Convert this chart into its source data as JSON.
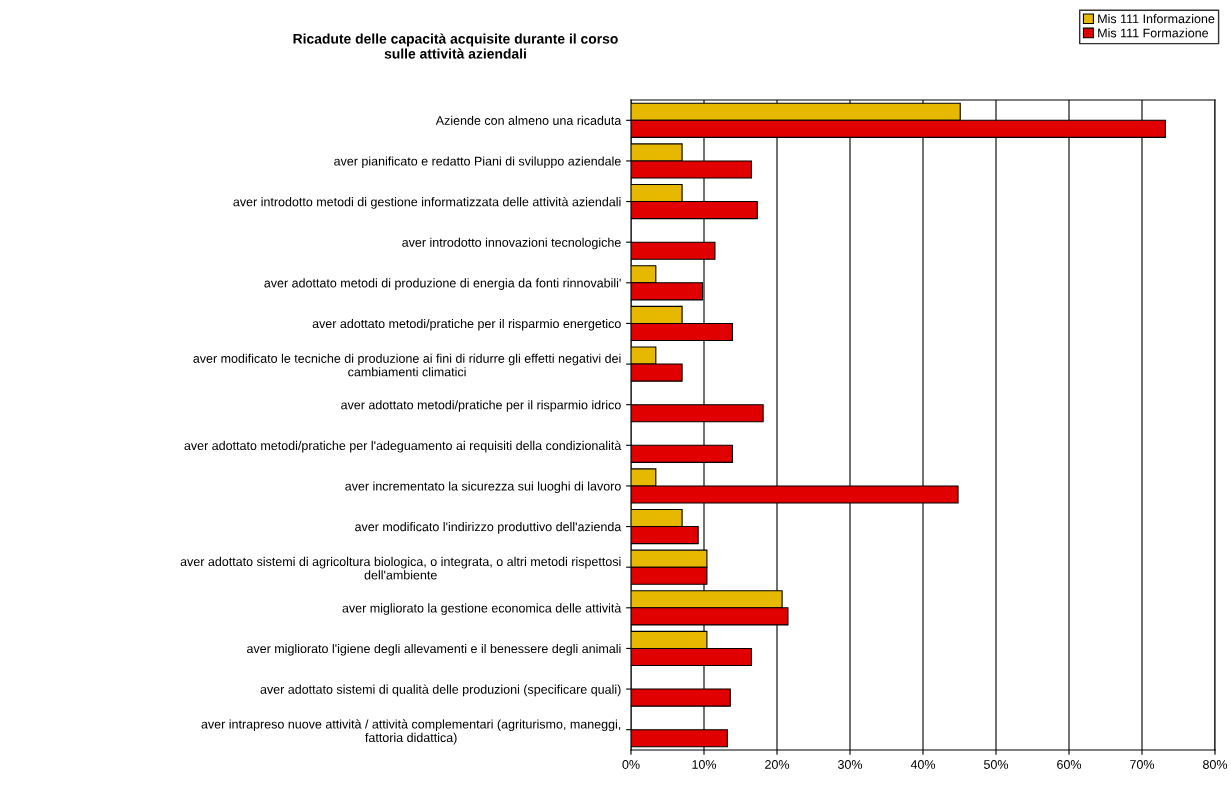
{
  "chart_data": {
    "type": "bar",
    "orientation": "horizontal",
    "title": "Ricadute delle capacità acquisite durante il corso\nsulle attività aziendali",
    "categories": [
      "Aziende con almeno una ricaduta",
      "aver pianificato e redatto Piani di sviluppo aziendale",
      "aver introdotto metodi di gestione informatizzata delle attività aziendali",
      "aver introdotto innovazioni tecnologiche",
      "aver adottato metodi di produzione di energia da fonti rinnovabili'",
      "aver adottato metodi/pratiche per il risparmio energetico",
      "aver modificato le tecniche di produzione ai fini di ridurre gli effetti negativi dei\ncambiamenti climatici",
      "aver adottato metodi/pratiche per il risparmio idrico",
      "aver adottato metodi/pratiche per l'adeguamento ai requisiti della condizionalità",
      "aver incrementato la sicurezza sui luoghi di lavoro",
      "aver modificato l'indirizzo produttivo dell'azienda",
      "aver adottato sistemi di agricoltura biologica, o integrata, o altri metodi rispettosi\ndell'ambiente",
      "aver migliorato la gestione economica delle attività",
      "aver migliorato l'igiene degli allevamenti e il benessere degli animali",
      "aver adottato sistemi di qualità delle produzioni (specificare quali)",
      "aver intrapreso nuove attività / attività complementari (agriturismo, maneggi,\nfattoria didattica)"
    ],
    "series": [
      {
        "name": "Mis 111 Informazione",
        "color": "#e6b800",
        "values": [
          45.1,
          7.0,
          7.0,
          null,
          3.4,
          7.0,
          3.4,
          null,
          null,
          3.4,
          7.0,
          10.4,
          20.7,
          10.4,
          null,
          null
        ]
      },
      {
        "name": "Mis 111 Formazione",
        "color": "#e00000",
        "values": [
          73.2,
          16.5,
          17.3,
          11.5,
          9.8,
          13.9,
          7.0,
          18.1,
          13.9,
          44.8,
          9.2,
          10.4,
          21.5,
          16.5,
          13.6,
          13.2
        ]
      }
    ],
    "xlim": [
      0,
      80
    ],
    "xticks": [
      {
        "value": 0,
        "label": "0%"
      },
      {
        "value": 10,
        "label": "10%"
      },
      {
        "value": 20,
        "label": "20%"
      },
      {
        "value": 30,
        "label": "30%"
      },
      {
        "value": 40,
        "label": "40%"
      },
      {
        "value": 50,
        "label": "50%"
      },
      {
        "value": 60,
        "label": "60%"
      },
      {
        "value": 70,
        "label": "70%"
      },
      {
        "value": 80,
        "label": "80%"
      }
    ],
    "grid": "x",
    "legend": "top right"
  }
}
